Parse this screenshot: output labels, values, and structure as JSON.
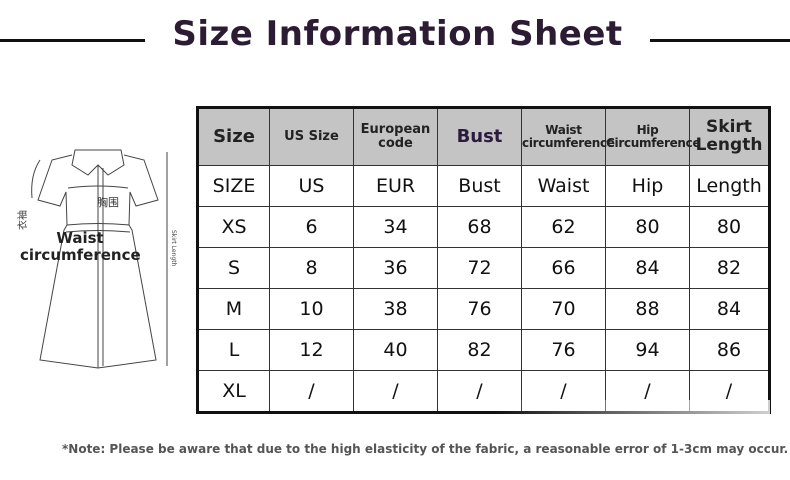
{
  "title": "Size Information Sheet",
  "diagram": {
    "waist_label_line1": "Waist",
    "waist_label_line2": "circumference",
    "chest_cn": "胸围",
    "sleeve_cn": "衣袖",
    "skirt_length": "Skirt Length"
  },
  "table": {
    "headers": [
      "Size",
      "US Size",
      "European code",
      "Bust",
      "Waist circumference",
      "Hip Circumference",
      "Skirt Length"
    ],
    "rows": [
      [
        "SIZE",
        "US",
        "EUR",
        "Bust",
        "Waist",
        "Hip",
        "Length"
      ],
      [
        "XS",
        "6",
        "34",
        "68",
        "62",
        "80",
        "80"
      ],
      [
        "S",
        "8",
        "36",
        "72",
        "66",
        "84",
        "82"
      ],
      [
        "M",
        "10",
        "38",
        "76",
        "70",
        "88",
        "84"
      ],
      [
        "L",
        "12",
        "40",
        "82",
        "76",
        "94",
        "86"
      ],
      [
        "XL",
        "/",
        "/",
        "/",
        "/",
        "/",
        "/"
      ]
    ]
  },
  "note": "*Note: Please be aware that due to the high elasticity of the fabric, a reasonable error of 1-3cm may occur.",
  "colors": {
    "title": "#2b1c33",
    "header_bg": "#c4c4c4"
  }
}
